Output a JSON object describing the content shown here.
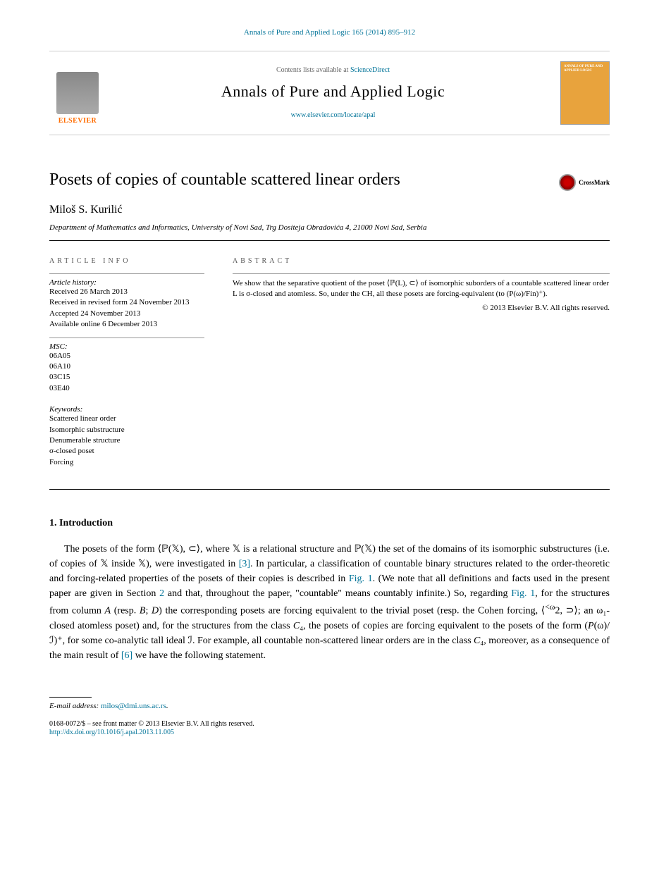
{
  "header": {
    "citation": "Annals of Pure and Applied Logic 165 (2014) 895–912",
    "contents_prefix": "Contents lists available at ",
    "contents_link": "ScienceDirect",
    "journal_name": "Annals of Pure and Applied Logic",
    "journal_url": "www.elsevier.com/locate/apal",
    "publisher": "ELSEVIER",
    "cover_title": "ANNALS OF PURE AND APPLIED LOGIC"
  },
  "article": {
    "title": "Posets of copies of countable scattered linear orders",
    "crossmark": "CrossMark",
    "author": "Miloš S. Kurilić",
    "affiliation": "Department of Mathematics and Informatics, University of Novi Sad, Trg Dositeja Obradovića 4, 21000 Novi Sad, Serbia"
  },
  "info": {
    "heading": "ARTICLE INFO",
    "history_label": "Article history:",
    "received": "Received 26 March 2013",
    "revised": "Received in revised form 24 November 2013",
    "accepted": "Accepted 24 November 2013",
    "online": "Available online 6 December 2013",
    "msc_label": "MSC:",
    "msc": [
      "06A05",
      "06A10",
      "03C15",
      "03E40"
    ],
    "keywords_label": "Keywords:",
    "keywords": [
      "Scattered linear order",
      "Isomorphic substructure",
      "Denumerable structure",
      "σ-closed poset",
      "Forcing"
    ]
  },
  "abstract": {
    "heading": "ABSTRACT",
    "text": "We show that the separative quotient of the poset ⟨ℙ(L), ⊂⟩ of isomorphic suborders of a countable scattered linear order L is σ-closed and atomless. So, under the CH, all these posets are forcing-equivalent (to (P(ω)/Fin)⁺).",
    "copyright": "© 2013 Elsevier B.V. All rights reserved."
  },
  "body": {
    "section_number": "1.",
    "section_title": "Introduction",
    "paragraph": "The posets of the form ⟨ℙ(𝕏), ⊂⟩, where 𝕏 is a relational structure and ℙ(𝕏) the set of the domains of its isomorphic substructures (i.e. of copies of 𝕏 inside 𝕏), were investigated in [3]. In particular, a classification of countable binary structures related to the order-theoretic and forcing-related properties of the posets of their copies is described in Fig. 1. (We note that all definitions and facts used in the present paper are given in Section 2 and that, throughout the paper, \"countable\" means countably infinite.) So, regarding Fig. 1, for the structures from column A (resp. B; D) the corresponding posets are forcing equivalent to the trivial poset (resp. the Cohen forcing, ⟨<ω2, ⊃⟩; an ω₁-closed atomless poset) and, for the structures from the class C₄, the posets of copies are forcing equivalent to the posets of the form (P(ω)/ℐ)⁺, for some co-analytic tall ideal ℐ. For example, all countable non-scattered linear orders are in the class C₄, moreover, as a consequence of the main result of [6] we have the following statement.",
    "ref3": "[3]",
    "fig1": "Fig. 1",
    "sec2": "2",
    "ref6": "[6]"
  },
  "footer": {
    "email_label": "E-mail address:",
    "email": "milos@dmi.uns.ac.rs",
    "issn": "0168-0072/$ – see front matter © 2013 Elsevier B.V. All rights reserved.",
    "doi": "http://dx.doi.org/10.1016/j.apal.2013.11.005"
  },
  "colors": {
    "link": "#007398",
    "elsevier_orange": "#ff6c00",
    "cover_bg": "#e8a33d"
  }
}
